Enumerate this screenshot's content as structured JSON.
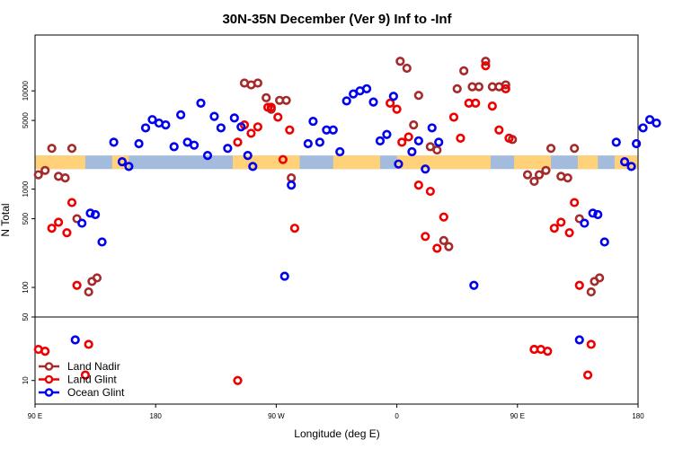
{
  "chart_data": {
    "type": "scatter",
    "title": "30N-35N December (Ver 9)   Inf to -Inf",
    "xlabel": "Longitude (deg E)",
    "ylabel": "N Total",
    "xlim": [
      90,
      450
    ],
    "x_ticks": [
      {
        "value": 90,
        "label": "90 E"
      },
      {
        "value": 162,
        "label": "180"
      },
      {
        "value": 234,
        "label": "90 W"
      },
      {
        "value": 306,
        "label": "0"
      },
      {
        "value": 378,
        "label": "90 E"
      },
      {
        "value": 450,
        "label": "180"
      }
    ],
    "y_scale": "log",
    "y_panels": [
      {
        "name": "upper",
        "ylim": [
          50,
          37000
        ],
        "ticks": [
          {
            "value": 100,
            "label": "100"
          },
          {
            "value": 500,
            "label": "500"
          },
          {
            "value": 1000,
            "label": "1000"
          },
          {
            "value": 5000,
            "label": "5000"
          },
          {
            "value": 10000,
            "label": "10000"
          }
        ]
      },
      {
        "name": "lower",
        "ylim": [
          5.5,
          50
        ],
        "ticks": [
          {
            "value": 10,
            "label": "10"
          },
          {
            "value": 50,
            "label": "50"
          }
        ]
      }
    ],
    "land_band": {
      "y_range": [
        1600,
        2200
      ],
      "land_color": "#ffd27a",
      "ocean_color": "#a3bbdc",
      "land_segments": [
        [
          90,
          120
        ],
        [
          136,
          146
        ],
        [
          208,
          248
        ],
        [
          268,
          296
        ],
        [
          306,
          362
        ],
        [
          376,
          398
        ],
        [
          414,
          426
        ],
        [
          436,
          450
        ]
      ]
    },
    "legend": {
      "position": "bottom-left",
      "entries": [
        {
          "label": "Land Nadir",
          "color": "#a52a2a"
        },
        {
          "label": "Land Glint",
          "color": "#ee0000"
        },
        {
          "label": "Ocean Glint",
          "color": "#0000ee"
        }
      ]
    },
    "series": [
      {
        "name": "Land Nadir",
        "color": "#a52a2a",
        "points": [
          [
            92,
            1400
          ],
          [
            96,
            1550
          ],
          [
            100,
            2600
          ],
          [
            104,
            1350
          ],
          [
            108,
            1300
          ],
          [
            112,
            2600
          ],
          [
            115,
            500
          ],
          [
            122,
            90
          ],
          [
            124,
            115
          ],
          [
            127,
            125
          ],
          [
            215,
            12000
          ],
          [
            219,
            11500
          ],
          [
            223,
            12000
          ],
          [
            228,
            8500
          ],
          [
            231,
            6500
          ],
          [
            236,
            8000
          ],
          [
            240,
            8000
          ],
          [
            243,
            1300
          ],
          [
            308,
            20000
          ],
          [
            312,
            17000
          ],
          [
            316,
            4500
          ],
          [
            319,
            9000
          ],
          [
            326,
            2700
          ],
          [
            330,
            2500
          ],
          [
            334,
            300
          ],
          [
            337,
            260
          ],
          [
            342,
            10500
          ],
          [
            346,
            16000
          ],
          [
            351,
            11000
          ],
          [
            355,
            11000
          ],
          [
            359,
            20000
          ],
          [
            363,
            11000
          ],
          [
            367,
            11000
          ],
          [
            371,
            11500
          ],
          [
            375,
            3200
          ],
          [
            384,
            1400
          ],
          [
            388,
            1200
          ],
          [
            391,
            1400
          ],
          [
            395,
            1550
          ],
          [
            398,
            2600
          ],
          [
            404,
            1350
          ],
          [
            408,
            1300
          ],
          [
            412,
            2600
          ],
          [
            415,
            500
          ],
          [
            422,
            90
          ],
          [
            424,
            115
          ],
          [
            427,
            125
          ]
        ]
      },
      {
        "name": "Land Glint",
        "color": "#ee0000",
        "points": [
          [
            92,
            22
          ],
          [
            96,
            21
          ],
          [
            100,
            400
          ],
          [
            104,
            460
          ],
          [
            109,
            360
          ],
          [
            112,
            730
          ],
          [
            115,
            105
          ],
          [
            120,
            11.5
          ],
          [
            122,
            25
          ],
          [
            211,
            3000
          ],
          [
            215,
            4500
          ],
          [
            219,
            3700
          ],
          [
            223,
            4300
          ],
          [
            229,
            6800
          ],
          [
            231,
            6800
          ],
          [
            235,
            5400
          ],
          [
            238,
            2000
          ],
          [
            242,
            4000
          ],
          [
            245,
            400
          ],
          [
            211,
            10
          ],
          [
            302,
            7500
          ],
          [
            306,
            6500
          ],
          [
            309,
            3000
          ],
          [
            313,
            3400
          ],
          [
            319,
            1100
          ],
          [
            323,
            330
          ],
          [
            326,
            950
          ],
          [
            330,
            250
          ],
          [
            334,
            520
          ],
          [
            340,
            5400
          ],
          [
            344,
            3300
          ],
          [
            349,
            7500
          ],
          [
            353,
            7500
          ],
          [
            359,
            18000
          ],
          [
            363,
            7000
          ],
          [
            367,
            4000
          ],
          [
            371,
            10500
          ],
          [
            373,
            3300
          ],
          [
            388,
            22
          ],
          [
            388,
            22
          ],
          [
            392,
            22
          ],
          [
            396,
            21
          ],
          [
            400,
            400
          ],
          [
            404,
            460
          ],
          [
            409,
            360
          ],
          [
            412,
            730
          ],
          [
            415,
            105
          ],
          [
            420,
            11.5
          ],
          [
            422,
            25
          ]
        ]
      },
      {
        "name": "Ocean Glint",
        "color": "#0000ee",
        "points": [
          [
            114,
            28
          ],
          [
            118,
            450
          ],
          [
            123,
            570
          ],
          [
            126,
            550
          ],
          [
            130,
            290
          ],
          [
            137,
            3000
          ],
          [
            142,
            1900
          ],
          [
            146,
            1700
          ],
          [
            152,
            2900
          ],
          [
            156,
            4200
          ],
          [
            160,
            5100
          ],
          [
            164,
            4700
          ],
          [
            168,
            4500
          ],
          [
            173,
            2700
          ],
          [
            177,
            5700
          ],
          [
            181,
            3000
          ],
          [
            185,
            2800
          ],
          [
            189,
            7500
          ],
          [
            193,
            2200
          ],
          [
            197,
            5500
          ],
          [
            201,
            4200
          ],
          [
            205,
            2600
          ],
          [
            209,
            5300
          ],
          [
            213,
            4300
          ],
          [
            217,
            2200
          ],
          [
            220,
            1700
          ],
          [
            239,
            130
          ],
          [
            243,
            1100
          ],
          [
            253,
            2900
          ],
          [
            256,
            4900
          ],
          [
            260,
            3000
          ],
          [
            264,
            4000
          ],
          [
            268,
            4000
          ],
          [
            272,
            2400
          ],
          [
            276,
            7900
          ],
          [
            280,
            9300
          ],
          [
            284,
            10000
          ],
          [
            288,
            10500
          ],
          [
            292,
            7700
          ],
          [
            296,
            3100
          ],
          [
            300,
            3600
          ],
          [
            304,
            8800
          ],
          [
            307,
            1800
          ],
          [
            315,
            2400
          ],
          [
            319,
            3100
          ],
          [
            323,
            1600
          ],
          [
            327,
            4200
          ],
          [
            331,
            3000
          ],
          [
            352,
            105
          ],
          [
            415,
            28
          ],
          [
            418,
            450
          ],
          [
            423,
            570
          ],
          [
            426,
            550
          ],
          [
            430,
            290
          ],
          [
            437,
            3000
          ],
          [
            442,
            1900
          ],
          [
            446,
            1700
          ],
          [
            449,
            2900
          ],
          [
            453,
            4200
          ],
          [
            457,
            5100
          ],
          [
            461,
            4700
          ]
        ]
      }
    ]
  }
}
